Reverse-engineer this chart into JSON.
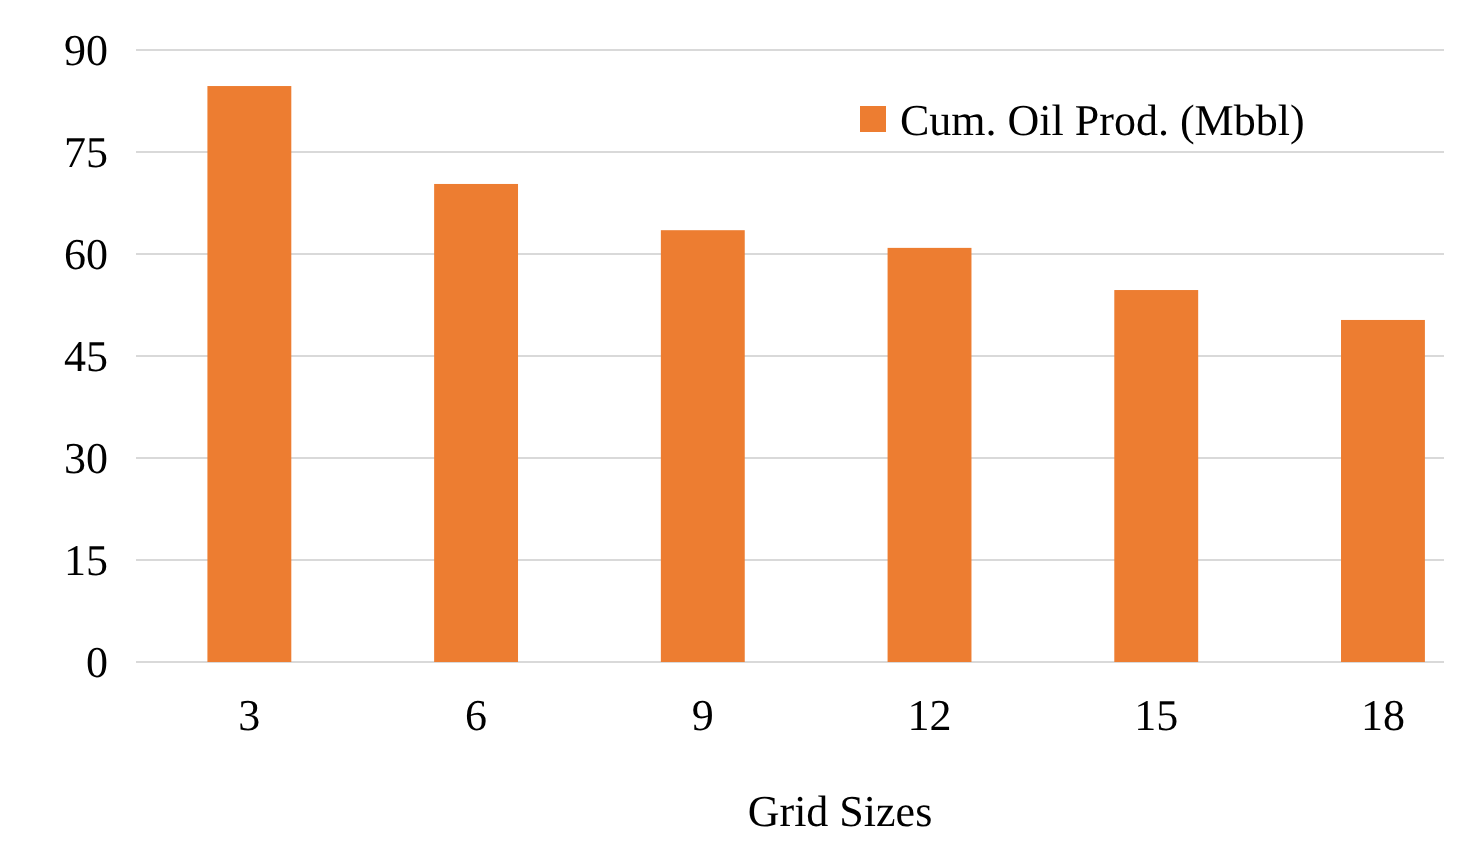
{
  "chart_data": {
    "type": "bar",
    "xlabel": "Grid Sizes",
    "categories": [
      "3",
      "6",
      "9",
      "12",
      "15",
      "18"
    ],
    "series": [
      {
        "name": "Cum. Oil Prod. (Mbbl)",
        "color": "#ed7d31",
        "values": [
          84.7,
          70.3,
          63.5,
          60.9,
          54.7,
          50.3
        ]
      }
    ],
    "ylim": [
      0,
      90
    ],
    "yticks": [
      0,
      15,
      30,
      45,
      60,
      75,
      90
    ],
    "grid": "y",
    "legend": "top right"
  }
}
